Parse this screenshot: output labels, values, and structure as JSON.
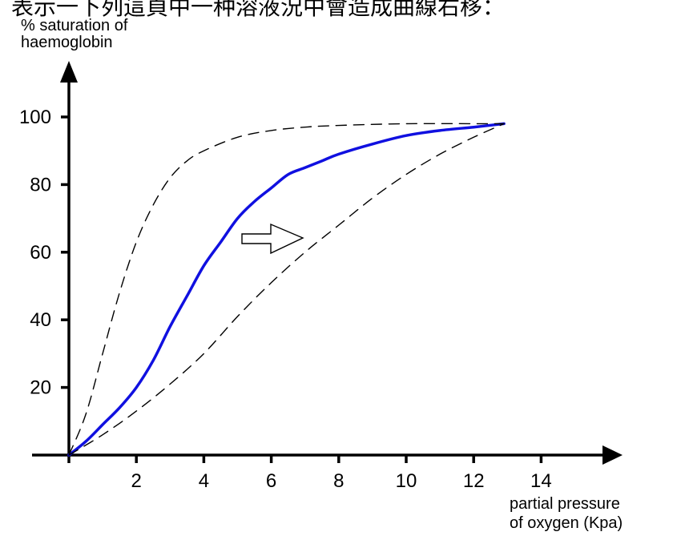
{
  "header": {
    "caption": "表示一下列這頁中一种溶液況中會造成曲線右移："
  },
  "colors": {
    "main_curve": "#1010e0",
    "axes": "#000000",
    "dashed": "#000000"
  },
  "chart_data": {
    "type": "line",
    "title": "",
    "ylabel_lines": [
      "% saturation of",
      "haemoglobin"
    ],
    "xlabel_lines": [
      "partial pressure",
      "of oxygen (Kpa)"
    ],
    "xlim": [
      0,
      14
    ],
    "ylim": [
      0,
      100
    ],
    "x_ticks": [
      2,
      4,
      6,
      8,
      10,
      12,
      14
    ],
    "y_ticks": [
      20,
      40,
      60,
      80,
      100
    ],
    "grid": false,
    "annotation": "hollow arrow pointing right (curve shift to the right)",
    "series": [
      {
        "style": "solid",
        "x": [
          0,
          0.5,
          1,
          1.5,
          2,
          2.5,
          3,
          3.5,
          4,
          4.5,
          5,
          5.5,
          6,
          6.5,
          7,
          7.5,
          8,
          9,
          10,
          11,
          12,
          12.9
        ],
        "y": [
          0,
          4,
          9,
          14,
          20,
          28,
          38,
          47,
          56,
          63,
          70,
          75,
          79,
          83,
          85,
          87,
          89,
          92,
          94.5,
          96,
          97,
          98
        ]
      },
      {
        "style": "dashed",
        "x": [
          0,
          0.5,
          1,
          1.5,
          2,
          2.5,
          3,
          3.5,
          4,
          5,
          6,
          7,
          8,
          10,
          12,
          12.9
        ],
        "y": [
          0,
          12,
          30,
          48,
          63,
          74,
          82,
          87,
          90,
          94,
          96,
          97,
          97.5,
          98,
          98,
          98
        ]
      },
      {
        "style": "dashed",
        "x": [
          0,
          1,
          2,
          3,
          4,
          5,
          6,
          7,
          8,
          9,
          10,
          11,
          12,
          12.9
        ],
        "y": [
          0,
          6,
          13,
          21,
          30,
          41,
          51,
          60,
          68,
          76,
          83,
          89,
          94,
          98
        ]
      }
    ]
  }
}
